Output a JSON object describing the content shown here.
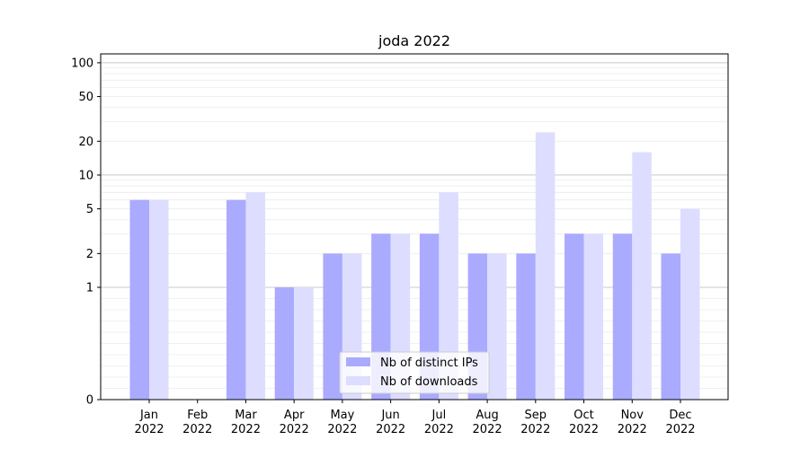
{
  "chart_data": {
    "type": "bar",
    "title": "joda 2022",
    "xlabel": "",
    "ylabel": "",
    "y_scale": "symlog",
    "ylim": [
      0,
      120
    ],
    "y_ticks": [
      0,
      1,
      2,
      5,
      10,
      20,
      50,
      100
    ],
    "grid": "horizontal",
    "legend_position": "bottom-center",
    "categories": [
      [
        "Jan",
        "2022"
      ],
      [
        "Feb",
        "2022"
      ],
      [
        "Mar",
        "2022"
      ],
      [
        "Apr",
        "2022"
      ],
      [
        "May",
        "2022"
      ],
      [
        "Jun",
        "2022"
      ],
      [
        "Jul",
        "2022"
      ],
      [
        "Aug",
        "2022"
      ],
      [
        "Sep",
        "2022"
      ],
      [
        "Oct",
        "2022"
      ],
      [
        "Nov",
        "2022"
      ],
      [
        "Dec",
        "2022"
      ]
    ],
    "series": [
      {
        "name": "Nb of distinct IPs",
        "color": "#aaaaff",
        "values": [
          6,
          0,
          6,
          1,
          2,
          3,
          3,
          2,
          2,
          3,
          3,
          2
        ]
      },
      {
        "name": "Nb of downloads",
        "color": "#ddddff",
        "values": [
          6,
          0,
          7,
          1,
          2,
          3,
          7,
          2,
          24,
          3,
          16,
          5
        ]
      }
    ]
  }
}
